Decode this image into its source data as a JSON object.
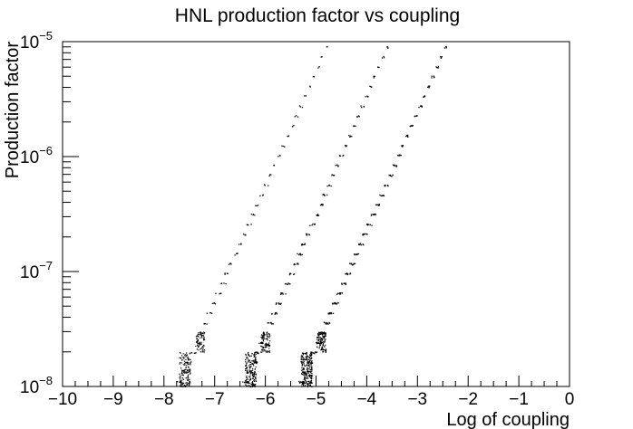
{
  "chart_data": {
    "type": "scatter",
    "title": "HNL production factor vs coupling",
    "xlabel": "Log of coupling",
    "ylabel": "Production factor",
    "xlim": [
      -10,
      0
    ],
    "ylim": [
      1e-08,
      1e-05
    ],
    "yscale": "log",
    "grid": false,
    "x_ticks": [
      {
        "value": -10,
        "label": "−10"
      },
      {
        "value": -9,
        "label": "−9"
      },
      {
        "value": -8,
        "label": "−8"
      },
      {
        "value": -7,
        "label": "−7"
      },
      {
        "value": -6,
        "label": "−6"
      },
      {
        "value": -5,
        "label": "−5"
      },
      {
        "value": -4,
        "label": "−4"
      },
      {
        "value": -3,
        "label": "−3"
      },
      {
        "value": -2,
        "label": "−2"
      },
      {
        "value": -1,
        "label": "−1"
      },
      {
        "value": 0,
        "label": "0"
      }
    ],
    "y_ticks": [
      {
        "value": 1e-08,
        "base": "10",
        "exp": "−8"
      },
      {
        "value": 1e-07,
        "base": "10",
        "exp": "−7"
      },
      {
        "value": 1e-06,
        "base": "10",
        "exp": "−6"
      },
      {
        "value": 1e-05,
        "base": "10",
        "exp": "−5"
      }
    ],
    "series": [
      {
        "x_start": -7.7,
        "x_end": -4.8,
        "y_start": 1.1e-08,
        "y_end": 9e-06,
        "density": 1
      },
      {
        "x_start": -6.4,
        "x_end": -3.6,
        "y_start": 1.1e-08,
        "y_end": 9e-06,
        "density": 2
      },
      {
        "x_start": -5.3,
        "x_end": -2.45,
        "y_start": 1.1e-08,
        "y_end": 9e-06,
        "density": 3
      }
    ],
    "colors": {
      "marker": "#000000",
      "axis": "#000000",
      "background": "#ffffff"
    }
  }
}
